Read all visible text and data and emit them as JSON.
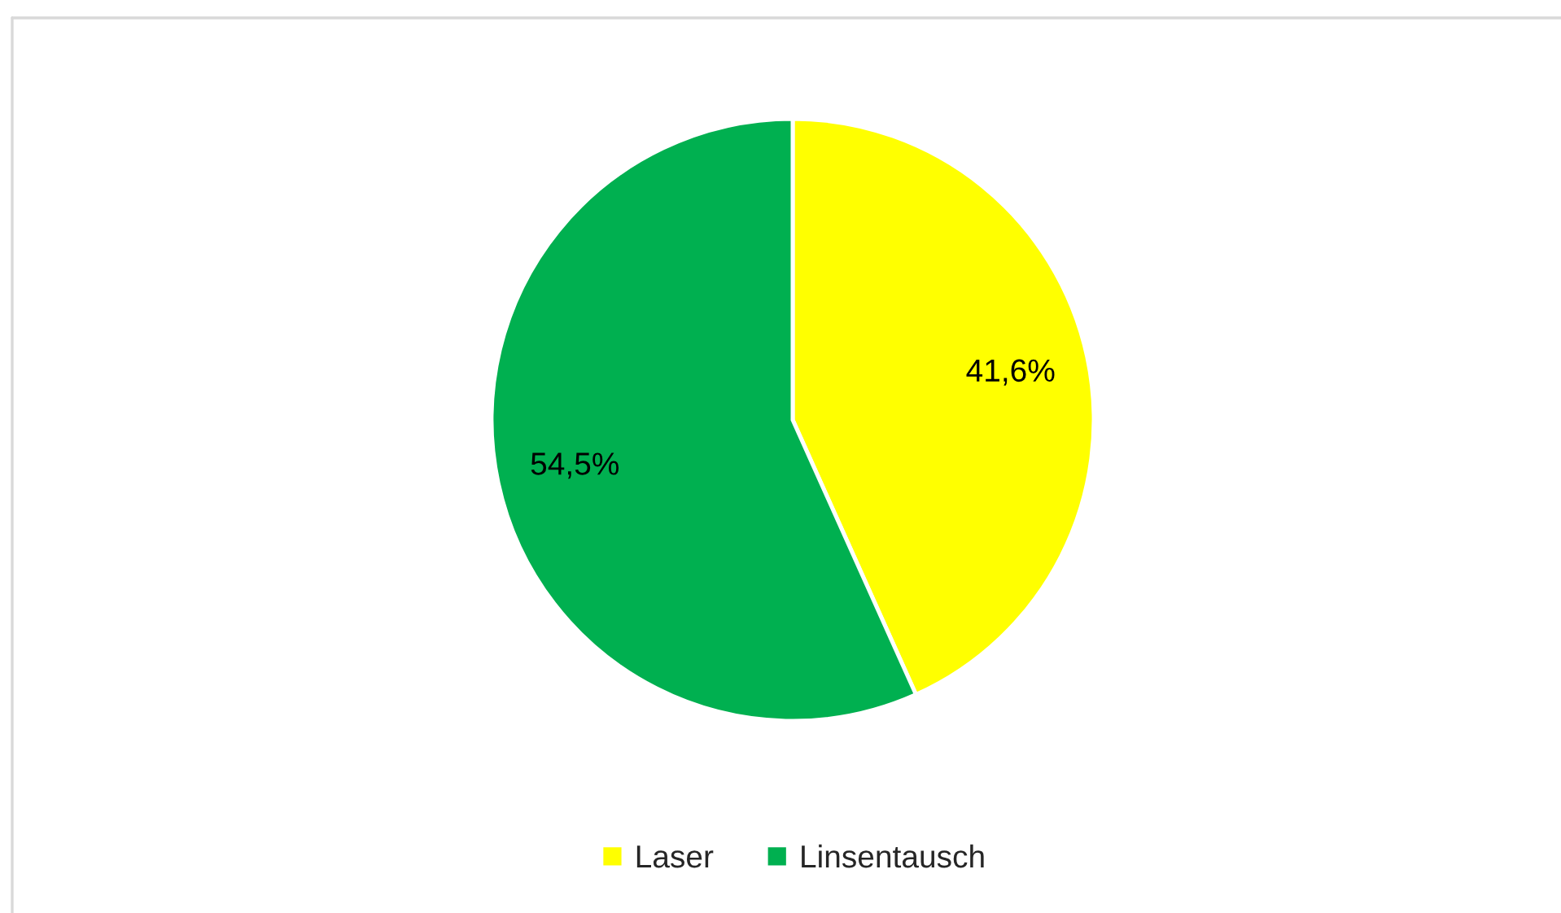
{
  "chart_data": {
    "type": "pie",
    "categories": [
      "Laser",
      "Linsentausch"
    ],
    "values": [
      41.6,
      54.5
    ],
    "colors": [
      "#ffff00",
      "#00b050"
    ],
    "value_labels": [
      "41,6%",
      "54,5%"
    ],
    "legend": "bottom"
  }
}
